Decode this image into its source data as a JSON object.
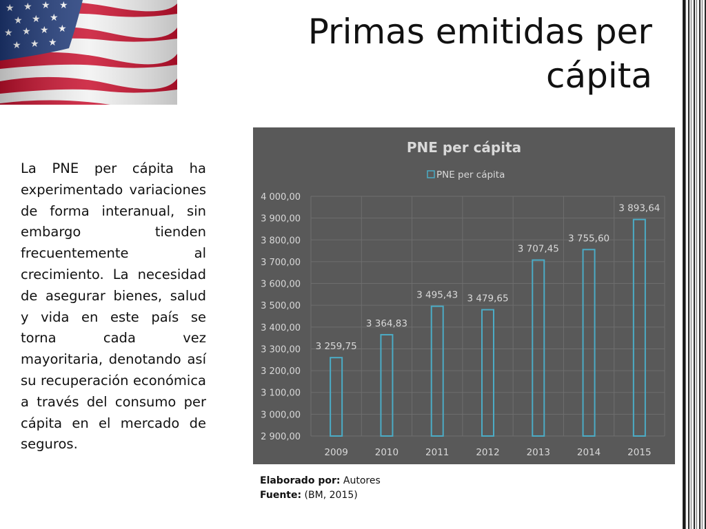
{
  "slide": {
    "title_line1": "Primas emitidas per",
    "title_line2": "cápita",
    "paragraph": "La PNE per cápita ha experimentado variaciones de forma interanual, sin embargo tienden frecuentemente al crecimiento. La necesidad de asegurar bienes, salud y vida en este país se torna cada vez mayoritaria, denotando así su recuperación económica a través del consumo per cápita en el mercado de seguros.",
    "credit_label": "Elaborado por:",
    "credit_value": "Autores",
    "source_label": "Fuente:",
    "source_value": "(BM, 2015)"
  },
  "colors": {
    "chart_bg": "#595959",
    "bar_outline": "#4bacc6",
    "text_light": "#d9d9d9"
  },
  "chart_data": {
    "type": "bar",
    "title": "PNE per cápita",
    "legend": "PNE per cápita",
    "legend_position": "top",
    "categories": [
      "2009",
      "2010",
      "2011",
      "2012",
      "2013",
      "2014",
      "2015"
    ],
    "values": [
      3259.75,
      3364.83,
      3495.43,
      3479.65,
      3707.45,
      3755.6,
      3893.64
    ],
    "value_labels": [
      "3 259,75",
      "3 364,83",
      "3 495,43",
      "3 479,65",
      "3 707,45",
      "3 755,60",
      "3 893,64"
    ],
    "ylim": [
      2900,
      4000
    ],
    "yticks": [
      "2 900,00",
      "3 000,00",
      "3 100,00",
      "3 200,00",
      "3 300,00",
      "3 400,00",
      "3 500,00",
      "3 600,00",
      "3 700,00",
      "3 800,00",
      "3 900,00",
      "4 000,00"
    ],
    "grid": true
  }
}
